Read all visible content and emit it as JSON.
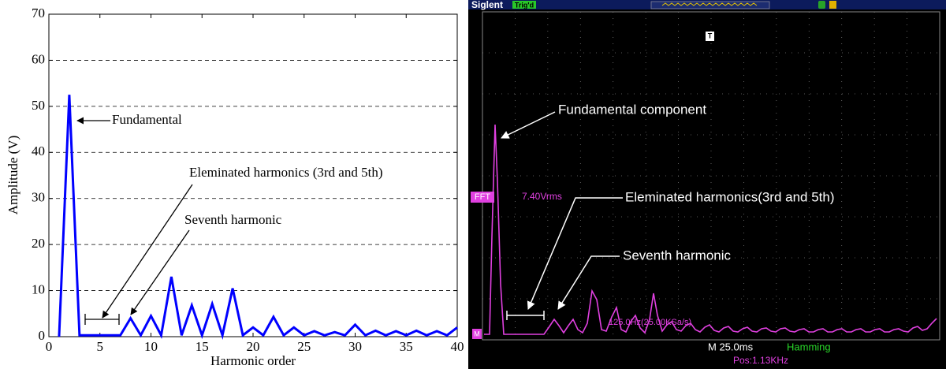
{
  "chart_data": {
    "type": "line",
    "x": [
      1,
      2,
      3,
      4,
      5,
      6,
      7,
      8,
      9,
      10,
      11,
      12,
      13,
      14,
      15,
      16,
      17,
      18,
      19,
      20,
      21,
      22,
      23,
      24,
      25,
      26,
      27,
      28,
      29,
      30,
      31,
      32,
      33,
      34,
      35,
      36,
      37,
      38,
      39,
      40
    ],
    "values": [
      0,
      52.5,
      0.3,
      0.3,
      0.3,
      0.3,
      0.3,
      4,
      0.3,
      4.5,
      0.3,
      13,
      0.3,
      6.8,
      0.3,
      7.1,
      0.3,
      10.5,
      0.3,
      2,
      0.3,
      4.3,
      0.3,
      2,
      0.3,
      1.2,
      0.3,
      1,
      0.3,
      2.6,
      0.3,
      1.3,
      0.3,
      1.2,
      0.3,
      1.3,
      0.3,
      1.2,
      0.3,
      2
    ],
    "color": "#0000ff",
    "xlim": [
      0,
      40
    ],
    "xticks": [
      0,
      5,
      10,
      15,
      20,
      25,
      30,
      35,
      40
    ],
    "ylim": [
      0,
      70
    ],
    "yticks": [
      0,
      10,
      20,
      30,
      40,
      50,
      60,
      70
    ],
    "grid": true,
    "xlabel": "Harmonic order",
    "ylabel": "Amplitude (V)",
    "annotations": [
      "Fundamental",
      "Eleminated harmonics (3rd and 5th)",
      "Seventh harmonic"
    ]
  },
  "scope": {
    "brand": "Siglent",
    "trigger": "Trig'd",
    "trigger_marker": "T",
    "fft": "FFT",
    "level": "7.40Vrms",
    "annotations": [
      "Fundamental component",
      "Eleminated harmonics(3rd and 5th)",
      "Seventh harmonic"
    ],
    "scale": "125.0Hz(25.00KSa/s)",
    "channel": "M",
    "timebase": "M 25.0ms",
    "window": "Hamming",
    "position": "Pos:1.13KHz"
  }
}
